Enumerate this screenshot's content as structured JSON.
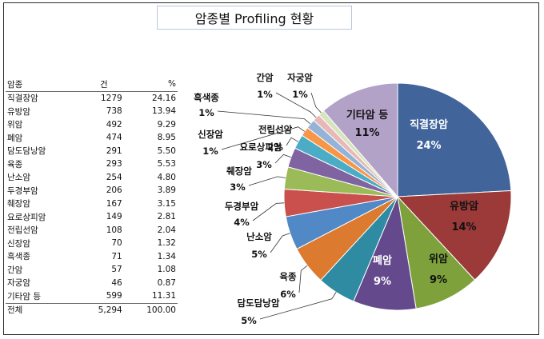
{
  "title": "암종별 Profiling 현황",
  "table": {
    "headers": [
      "암종",
      "건",
      "%"
    ],
    "rows": [
      {
        "name": "직결장암",
        "count": "1279",
        "pct": "24.16"
      },
      {
        "name": "유방암",
        "count": "738",
        "pct": "13.94"
      },
      {
        "name": "위암",
        "count": "492",
        "pct": "9.29"
      },
      {
        "name": "폐암",
        "count": "474",
        "pct": "8.95"
      },
      {
        "name": "담도담낭암",
        "count": "291",
        "pct": "5.50"
      },
      {
        "name": "육종",
        "count": "293",
        "pct": "5.53"
      },
      {
        "name": "난소암",
        "count": "254",
        "pct": "4.80"
      },
      {
        "name": "두경부암",
        "count": "206",
        "pct": "3.89"
      },
      {
        "name": "췌장암",
        "count": "167",
        "pct": "3.15"
      },
      {
        "name": "요로상피암",
        "count": "149",
        "pct": "2.81"
      },
      {
        "name": "전립선암",
        "count": "108",
        "pct": "2.04"
      },
      {
        "name": "신장암",
        "count": "70",
        "pct": "1.32"
      },
      {
        "name": "흑색종",
        "count": "71",
        "pct": "1.34"
      },
      {
        "name": "간암",
        "count": "57",
        "pct": "1.08"
      },
      {
        "name": "자궁암",
        "count": "46",
        "pct": "0.87"
      },
      {
        "name": "기타암 등",
        "count": "599",
        "pct": "11.31"
      }
    ],
    "total": {
      "name": "전체",
      "count": "5,294",
      "pct": "100.00"
    }
  },
  "chart_data": {
    "type": "pie",
    "slices": [
      {
        "label": "직결장암",
        "value": 1279,
        "pct_label": "24%",
        "color": "#41659b"
      },
      {
        "label": "유방암",
        "value": 738,
        "pct_label": "14%",
        "color": "#9b3a38"
      },
      {
        "label": "위암",
        "value": 492,
        "pct_label": "9%",
        "color": "#7ea13c"
      },
      {
        "label": "폐암",
        "value": 474,
        "pct_label": "9%",
        "color": "#644a8c"
      },
      {
        "label": "담도담낭암",
        "value": 291,
        "pct_label": "5%",
        "color": "#2e8ba2"
      },
      {
        "label": "육종",
        "value": 293,
        "pct_label": "6%",
        "color": "#dc7a2f"
      },
      {
        "label": "난소암",
        "value": 254,
        "pct_label": "5%",
        "color": "#5089c6"
      },
      {
        "label": "두경부암",
        "value": 206,
        "pct_label": "4%",
        "color": "#c9504c"
      },
      {
        "label": "췌장암",
        "value": 167,
        "pct_label": "3%",
        "color": "#9bbb59"
      },
      {
        "label": "요로상피암",
        "value": 149,
        "pct_label": "3%",
        "color": "#8064a2"
      },
      {
        "label": "전립선암",
        "value": 108,
        "pct_label": "2%",
        "color": "#4bacc6"
      },
      {
        "label": "신장암",
        "value": 70,
        "pct_label": "1%",
        "color": "#f79646"
      },
      {
        "label": "흑색종",
        "value": 71,
        "pct_label": "1%",
        "color": "#95b3d7"
      },
      {
        "label": "간암",
        "value": 57,
        "pct_label": "1%",
        "color": "#e6b9b8"
      },
      {
        "label": "자궁암",
        "value": 46,
        "pct_label": "1%",
        "color": "#d7e4bd"
      },
      {
        "label": "기타암 등",
        "value": 599,
        "pct_label": "11%",
        "color": "#b3a2c7"
      }
    ]
  }
}
